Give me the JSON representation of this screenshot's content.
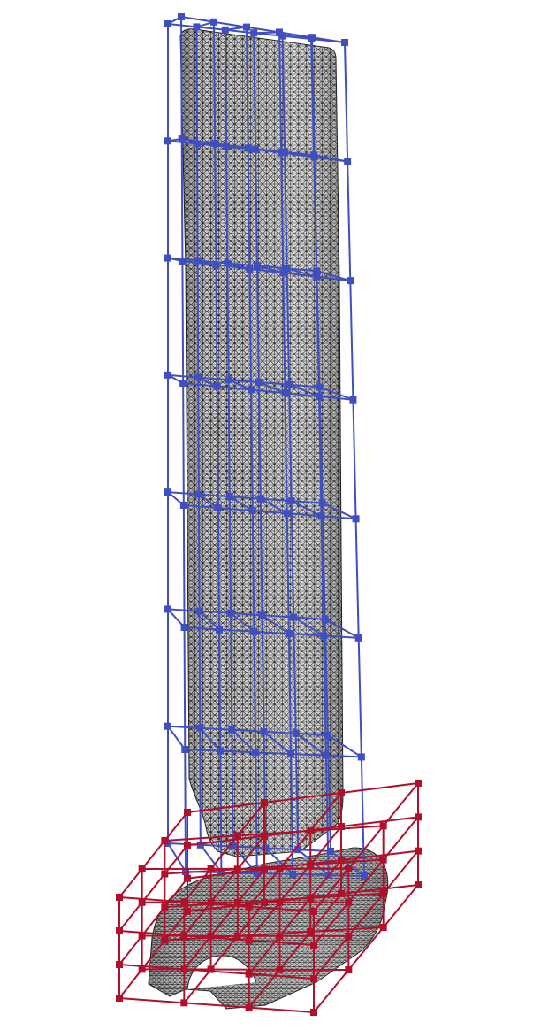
{
  "figure": {
    "background": "#ffffff",
    "mesh_fill": "#d9d9d9",
    "mesh_line": "#1a1a1a",
    "blade_lattice_color": "#3f4fbf",
    "root_lattice_color": "#b0102a",
    "blade_lattice": {
      "columns": 6,
      "rows": 7,
      "layers": 2
    },
    "root_lattice": {
      "columns": 4,
      "rows": 4,
      "layers": 4
    }
  }
}
